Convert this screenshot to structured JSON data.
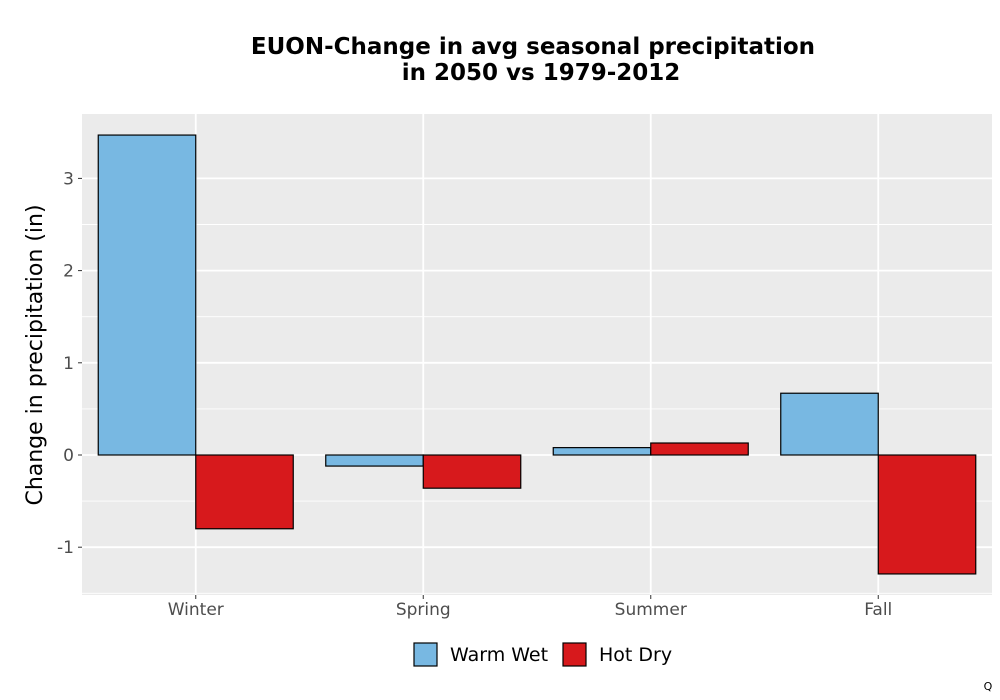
{
  "chart_data": {
    "type": "bar",
    "title_lines": [
      "EUON-Change in avg seasonal precipitation",
      "in 2050 vs 1979-2012"
    ],
    "xlabel": "",
    "ylabel": "Change in precipitation (in)",
    "categories": [
      "Winter",
      "Spring",
      "Summer",
      "Fall"
    ],
    "series": [
      {
        "name": "Warm Wet",
        "color": "#78b8e2",
        "values": [
          3.47,
          -0.12,
          0.08,
          0.67
        ]
      },
      {
        "name": "Hot Dry",
        "color": "#d7191c",
        "values": [
          -0.8,
          -0.36,
          0.13,
          -1.29
        ]
      }
    ],
    "ylim": [
      -1.5,
      3.7
    ],
    "yticks": [
      -1,
      0,
      1,
      2,
      3
    ],
    "ytick_labels": [
      "-1",
      "0",
      "1",
      "2",
      "3"
    ],
    "grid": true,
    "legend_position": "bottom",
    "colors": {
      "panel_background": "#ebebeb",
      "gridline": "#ffffff",
      "bar_outline": "#000000"
    }
  },
  "corner_mark": "Q"
}
